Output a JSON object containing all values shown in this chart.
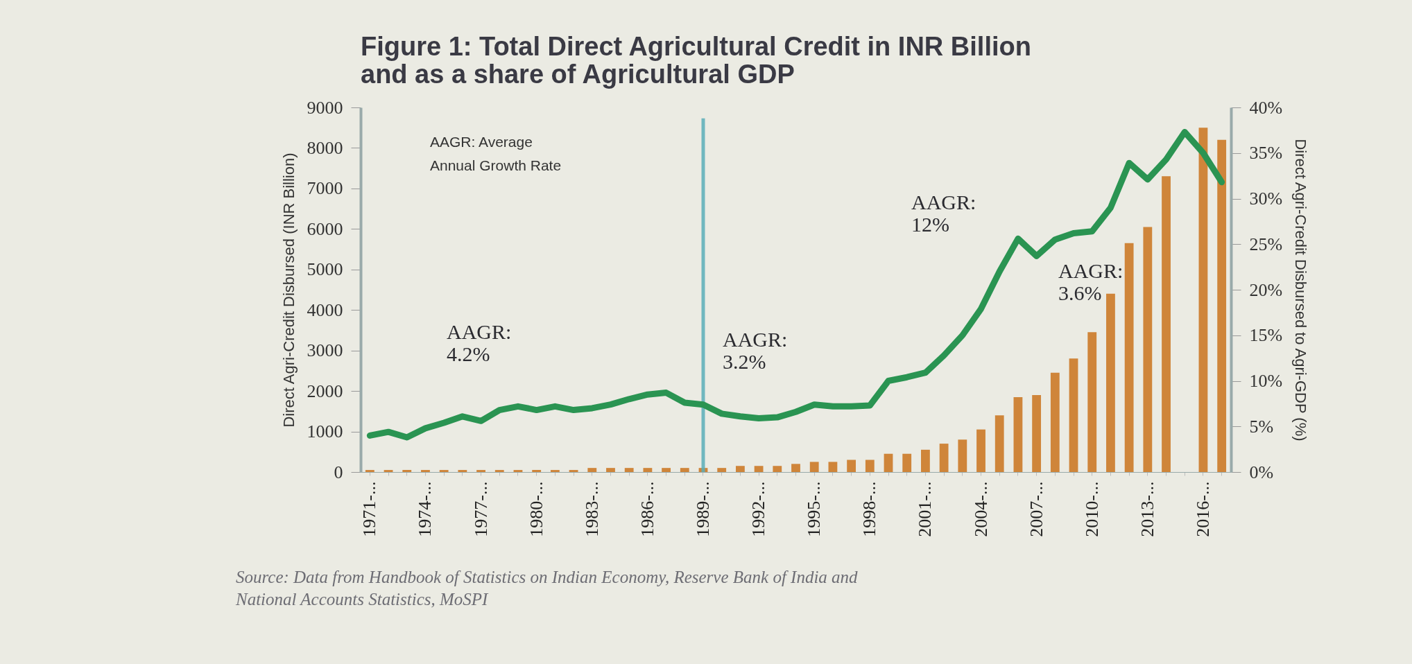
{
  "chart_data": {
    "type": "bar",
    "title": "Figure 1: Total Direct Agricultural Credit in INR Billion\nand as a share of Agricultural GDP",
    "ylabel": "Direct Agri-Credit Disbursed (INR Billion)",
    "y2label": "Direct Agri-Credit Disbursed to Agri-GDP (%)",
    "categories": [
      "1971-...",
      null,
      null,
      "1974-...",
      null,
      null,
      "1977-...",
      null,
      null,
      "1980-...",
      null,
      null,
      "1983-...",
      null,
      null,
      "1986-...",
      null,
      null,
      "1989-...",
      null,
      null,
      "1992-...",
      null,
      null,
      "1995-...",
      null,
      null,
      "1998-...",
      null,
      null,
      "2001-...",
      null,
      null,
      "2004-...",
      null,
      null,
      "2007-...",
      null,
      null,
      "2010-...",
      null,
      null,
      "2013-...",
      null,
      null,
      "2016-...",
      null
    ],
    "ylim": [
      0,
      9000
    ],
    "yticks": [
      0,
      1000,
      2000,
      3000,
      4000,
      5000,
      6000,
      7000,
      8000,
      9000
    ],
    "y2lim": [
      0,
      40
    ],
    "y2ticks": [
      {
        "value": 0,
        "label": "0%"
      },
      {
        "value": 5,
        "label": "5%"
      },
      {
        "value": 10,
        "label": "10%"
      },
      {
        "value": 15,
        "label": "15%"
      },
      {
        "value": 20,
        "label": "20%"
      },
      {
        "value": 25,
        "label": "25%"
      },
      {
        "value": 30,
        "label": "30%"
      },
      {
        "value": 35,
        "label": "35%"
      },
      {
        "value": 40,
        "label": "40%"
      }
    ],
    "series": [
      {
        "color": "#cf853a",
        "values": [
          50,
          50,
          50,
          50,
          50,
          50,
          50,
          50,
          50,
          50,
          50,
          50,
          100,
          100,
          100,
          100,
          100,
          100,
          100,
          100,
          150,
          150,
          150,
          200,
          250,
          250,
          300,
          300,
          450,
          450,
          550,
          700,
          800,
          1050,
          1400,
          1850,
          1900,
          2450,
          2800,
          3450,
          4400,
          5650,
          6050,
          7300,
          null,
          8500,
          8200
        ]
      },
      {
        "type": "line",
        "axis": "y2",
        "color": "#2a9452",
        "values": [
          4.0,
          4.4,
          3.8,
          4.8,
          5.4,
          6.1,
          5.6,
          6.8,
          7.2,
          6.8,
          7.2,
          6.8,
          7.0,
          7.4,
          8.0,
          8.5,
          8.7,
          7.6,
          7.4,
          6.4,
          6.1,
          5.9,
          6.0,
          6.6,
          7.4,
          7.2,
          7.2,
          7.3,
          10.0,
          10.4,
          10.9,
          12.8,
          15.0,
          17.9,
          22.0,
          25.6,
          23.7,
          25.5,
          26.2,
          26.4,
          29.0,
          33.9,
          32.1,
          34.3,
          37.3,
          35.0,
          31.8
        ]
      }
    ],
    "ref_lines": [
      {
        "axis": "x",
        "value": "1989-...",
        "color": "#5aaeb8"
      }
    ],
    "annotations": [
      "AAGR: Average\nAnnual Growth Rate",
      "AAGR:\n4.2%",
      "AAGR:\n3.2%",
      "AAGR:\n12%",
      "AAGR:\n3.6%",
      "Source: Data from Handbook of Statistics on Indian Economy, Reserve Bank of India and\nNational Accounts Statistics, MoSPI"
    ],
    "grid": false
  }
}
